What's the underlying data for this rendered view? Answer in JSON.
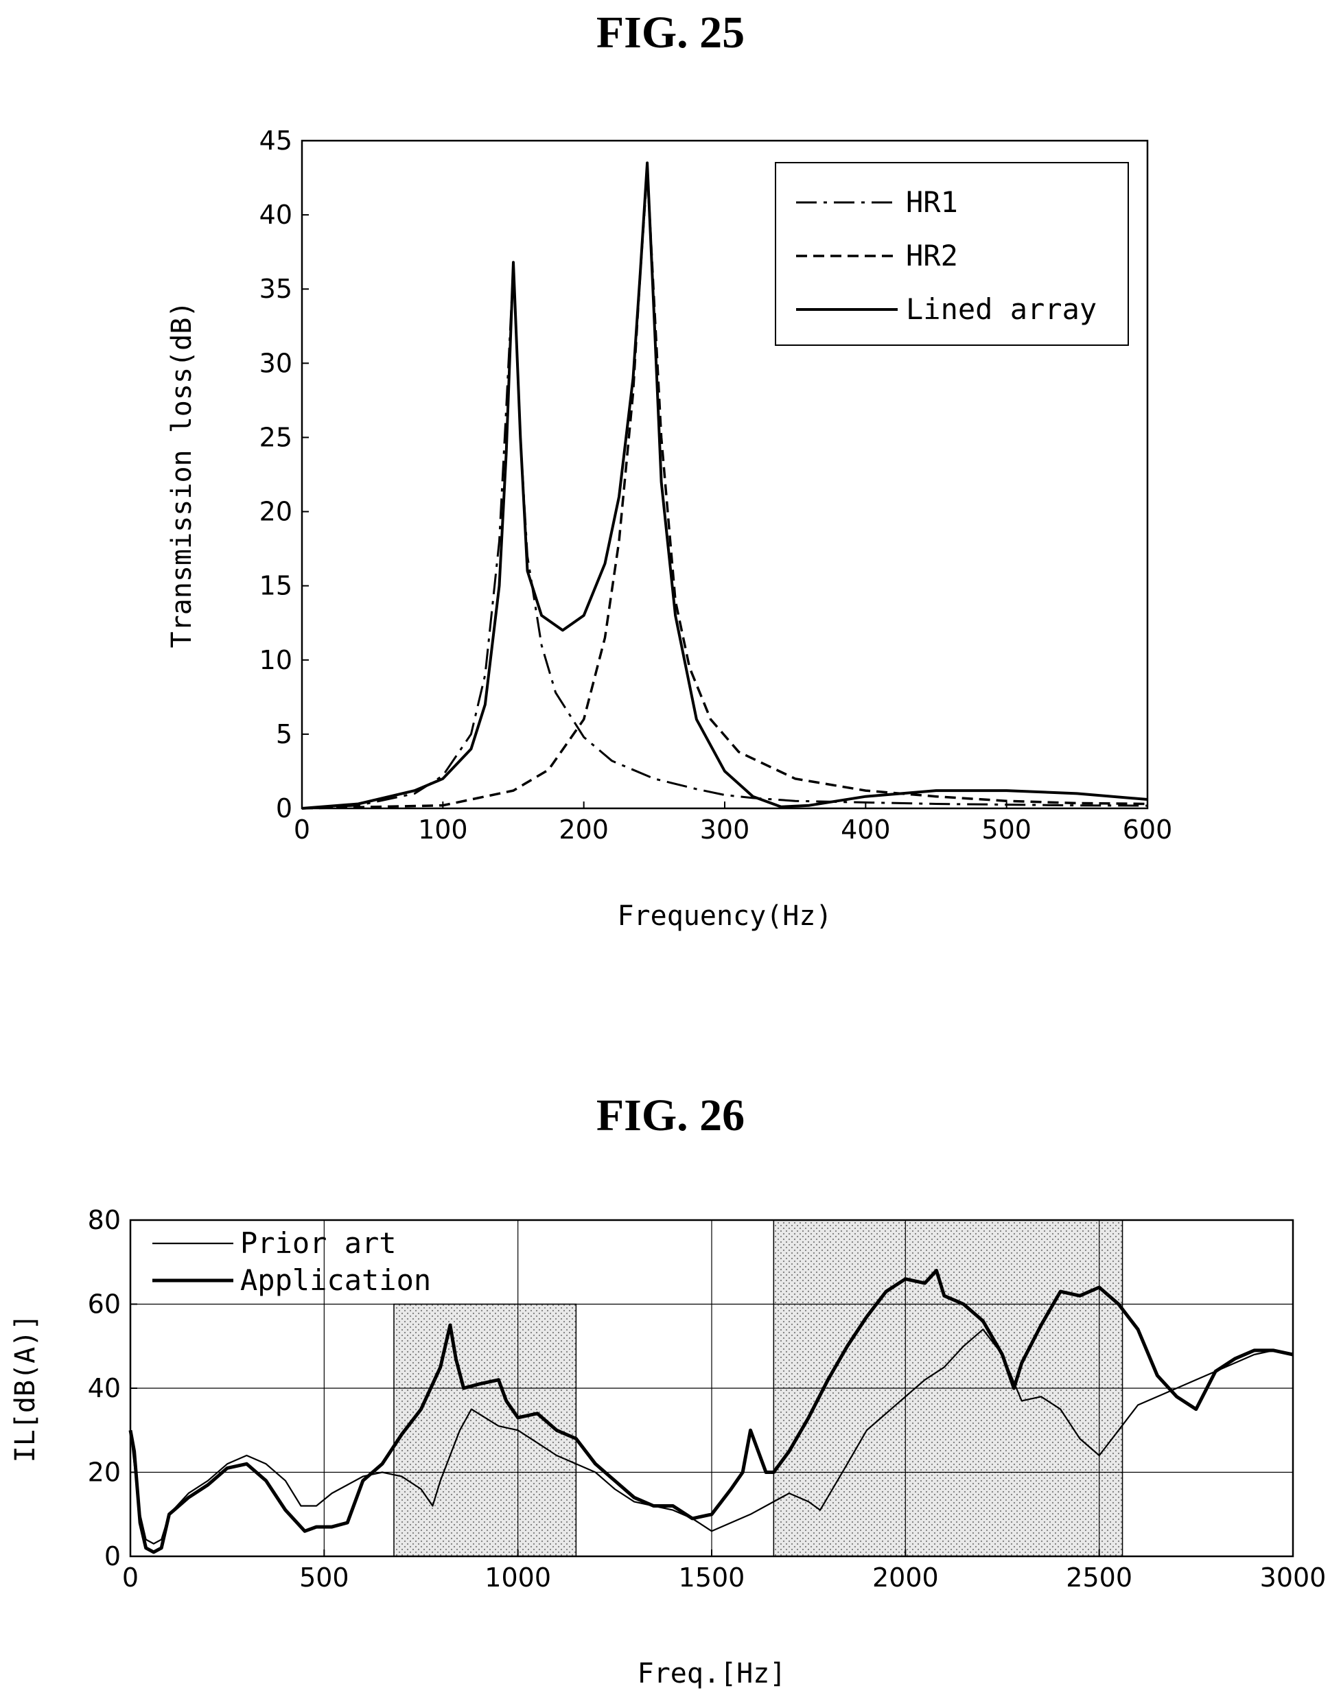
{
  "figures": {
    "fig25": {
      "title": "FIG. 25"
    },
    "fig26": {
      "title": "FIG. 26"
    }
  },
  "colors": {
    "line": "#000000",
    "grid": "#000000",
    "shade": "#bdbdbd"
  },
  "chart_data": [
    {
      "type": "line",
      "title": "FIG. 25",
      "xlabel": "Frequency(Hz)",
      "ylabel": "Transmission loss(dB)",
      "xlim": [
        0,
        600
      ],
      "ylim": [
        0,
        45
      ],
      "xticks": [
        0,
        100,
        200,
        300,
        400,
        500,
        600
      ],
      "yticks": [
        0,
        5,
        10,
        15,
        20,
        25,
        30,
        35,
        40,
        45
      ],
      "grid": false,
      "legend": "top-right",
      "series": [
        {
          "name": "HR1",
          "style": "dash-dot",
          "x": [
            0,
            40,
            80,
            100,
            120,
            130,
            140,
            145,
            150,
            155,
            160,
            170,
            180,
            200,
            220,
            250,
            280,
            300,
            320,
            350,
            400,
            450,
            500,
            550,
            600
          ],
          "y": [
            0,
            0.2,
            1.0,
            2.2,
            5.0,
            9.0,
            18.0,
            27.0,
            36.5,
            25.0,
            17.0,
            11.0,
            7.8,
            4.8,
            3.2,
            2.0,
            1.3,
            0.9,
            0.7,
            0.5,
            0.4,
            0.3,
            0.25,
            0.2,
            0.18
          ]
        },
        {
          "name": "HR2",
          "style": "dashed",
          "x": [
            0,
            100,
            150,
            175,
            200,
            215,
            225,
            235,
            240,
            245,
            250,
            255,
            265,
            275,
            290,
            310,
            350,
            400,
            450,
            500,
            550,
            600
          ],
          "y": [
            0,
            0.2,
            1.2,
            2.6,
            6.0,
            11.5,
            18.0,
            28.0,
            36.0,
            43.0,
            34.0,
            25.0,
            14.0,
            9.5,
            6.0,
            3.8,
            2.0,
            1.2,
            0.8,
            0.5,
            0.35,
            0.3
          ]
        },
        {
          "name": "Lined array",
          "style": "solid",
          "x": [
            0,
            40,
            80,
            100,
            120,
            130,
            140,
            145,
            150,
            155,
            160,
            170,
            185,
            200,
            215,
            225,
            235,
            240,
            245,
            250,
            255,
            265,
            280,
            300,
            320,
            340,
            360,
            400,
            450,
            500,
            550,
            600
          ],
          "y": [
            0,
            0.3,
            1.2,
            2.0,
            4.0,
            7.0,
            15.0,
            24.0,
            36.8,
            25.0,
            16.0,
            13.0,
            12.0,
            13.0,
            16.5,
            21.0,
            29.0,
            36.0,
            43.5,
            33.0,
            22.0,
            13.0,
            6.0,
            2.5,
            0.8,
            0.1,
            0.2,
            0.8,
            1.2,
            1.2,
            1.0,
            0.6
          ]
        }
      ]
    },
    {
      "type": "line",
      "title": "FIG. 26",
      "xlabel": "Freq.[Hz]",
      "ylabel": "IL[dB(A)]",
      "xlim": [
        0,
        3000
      ],
      "ylim": [
        0,
        80
      ],
      "xticks": [
        0,
        500,
        1000,
        1500,
        2000,
        2500,
        3000
      ],
      "yticks": [
        0,
        20,
        40,
        60,
        80
      ],
      "grid": true,
      "legend": "top-left",
      "shaded_regions": [
        {
          "x": [
            680,
            1150
          ],
          "y": [
            0,
            60
          ]
        },
        {
          "x": [
            1660,
            2560
          ],
          "y": [
            0,
            80
          ]
        }
      ],
      "series": [
        {
          "name": "Prior art",
          "style": "thin",
          "x": [
            0,
            10,
            25,
            40,
            60,
            80,
            100,
            150,
            200,
            250,
            300,
            350,
            400,
            440,
            480,
            520,
            560,
            600,
            650,
            700,
            750,
            780,
            800,
            850,
            880,
            950,
            1000,
            1050,
            1100,
            1150,
            1200,
            1250,
            1300,
            1350,
            1400,
            1450,
            1500,
            1550,
            1600,
            1660,
            1700,
            1750,
            1780,
            1850,
            1900,
            2000,
            2050,
            2100,
            2150,
            2200,
            2250,
            2300,
            2350,
            2400,
            2450,
            2500,
            2550,
            2600,
            2650,
            2700,
            2750,
            2800,
            2850,
            2900,
            2950,
            3000
          ],
          "y": [
            30,
            22,
            10,
            4,
            3,
            4,
            10,
            15,
            18,
            22,
            24,
            22,
            18,
            12,
            12,
            15,
            17,
            19,
            20,
            19,
            16,
            12,
            18,
            30,
            35,
            31,
            30,
            27,
            24,
            22,
            20,
            16,
            13,
            12,
            11,
            9,
            6,
            8,
            10,
            13,
            15,
            13,
            11,
            22,
            30,
            38,
            42,
            45,
            50,
            54,
            48,
            37,
            38,
            35,
            28,
            24,
            30,
            36,
            38,
            40,
            42,
            44,
            46,
            48,
            49,
            48
          ]
        },
        {
          "name": "Application",
          "style": "thick",
          "x": [
            0,
            10,
            25,
            40,
            60,
            80,
            100,
            150,
            200,
            250,
            300,
            350,
            400,
            450,
            480,
            520,
            560,
            600,
            650,
            700,
            750,
            800,
            825,
            840,
            860,
            900,
            950,
            970,
            1000,
            1050,
            1100,
            1150,
            1200,
            1250,
            1300,
            1350,
            1400,
            1450,
            1500,
            1550,
            1580,
            1600,
            1620,
            1640,
            1660,
            1700,
            1750,
            1800,
            1850,
            1900,
            1950,
            2000,
            2050,
            2080,
            2100,
            2150,
            2200,
            2250,
            2280,
            2300,
            2350,
            2400,
            2450,
            2500,
            2550,
            2600,
            2650,
            2700,
            2750,
            2800,
            2850,
            2900,
            2950,
            3000
          ],
          "y": [
            30,
            25,
            8,
            2,
            1,
            2,
            10,
            14,
            17,
            21,
            22,
            18,
            11,
            6,
            7,
            7,
            8,
            18,
            22,
            29,
            35,
            45,
            55,
            47,
            40,
            41,
            42,
            37,
            33,
            34,
            30,
            28,
            22,
            18,
            14,
            12,
            12,
            9,
            10,
            16,
            20,
            30,
            25,
            20,
            20,
            25,
            33,
            42,
            50,
            57,
            63,
            66,
            65,
            68,
            62,
            60,
            56,
            48,
            40,
            46,
            55,
            63,
            62,
            64,
            60,
            54,
            43,
            38,
            35,
            44,
            47,
            49,
            49,
            48
          ]
        }
      ]
    }
  ]
}
